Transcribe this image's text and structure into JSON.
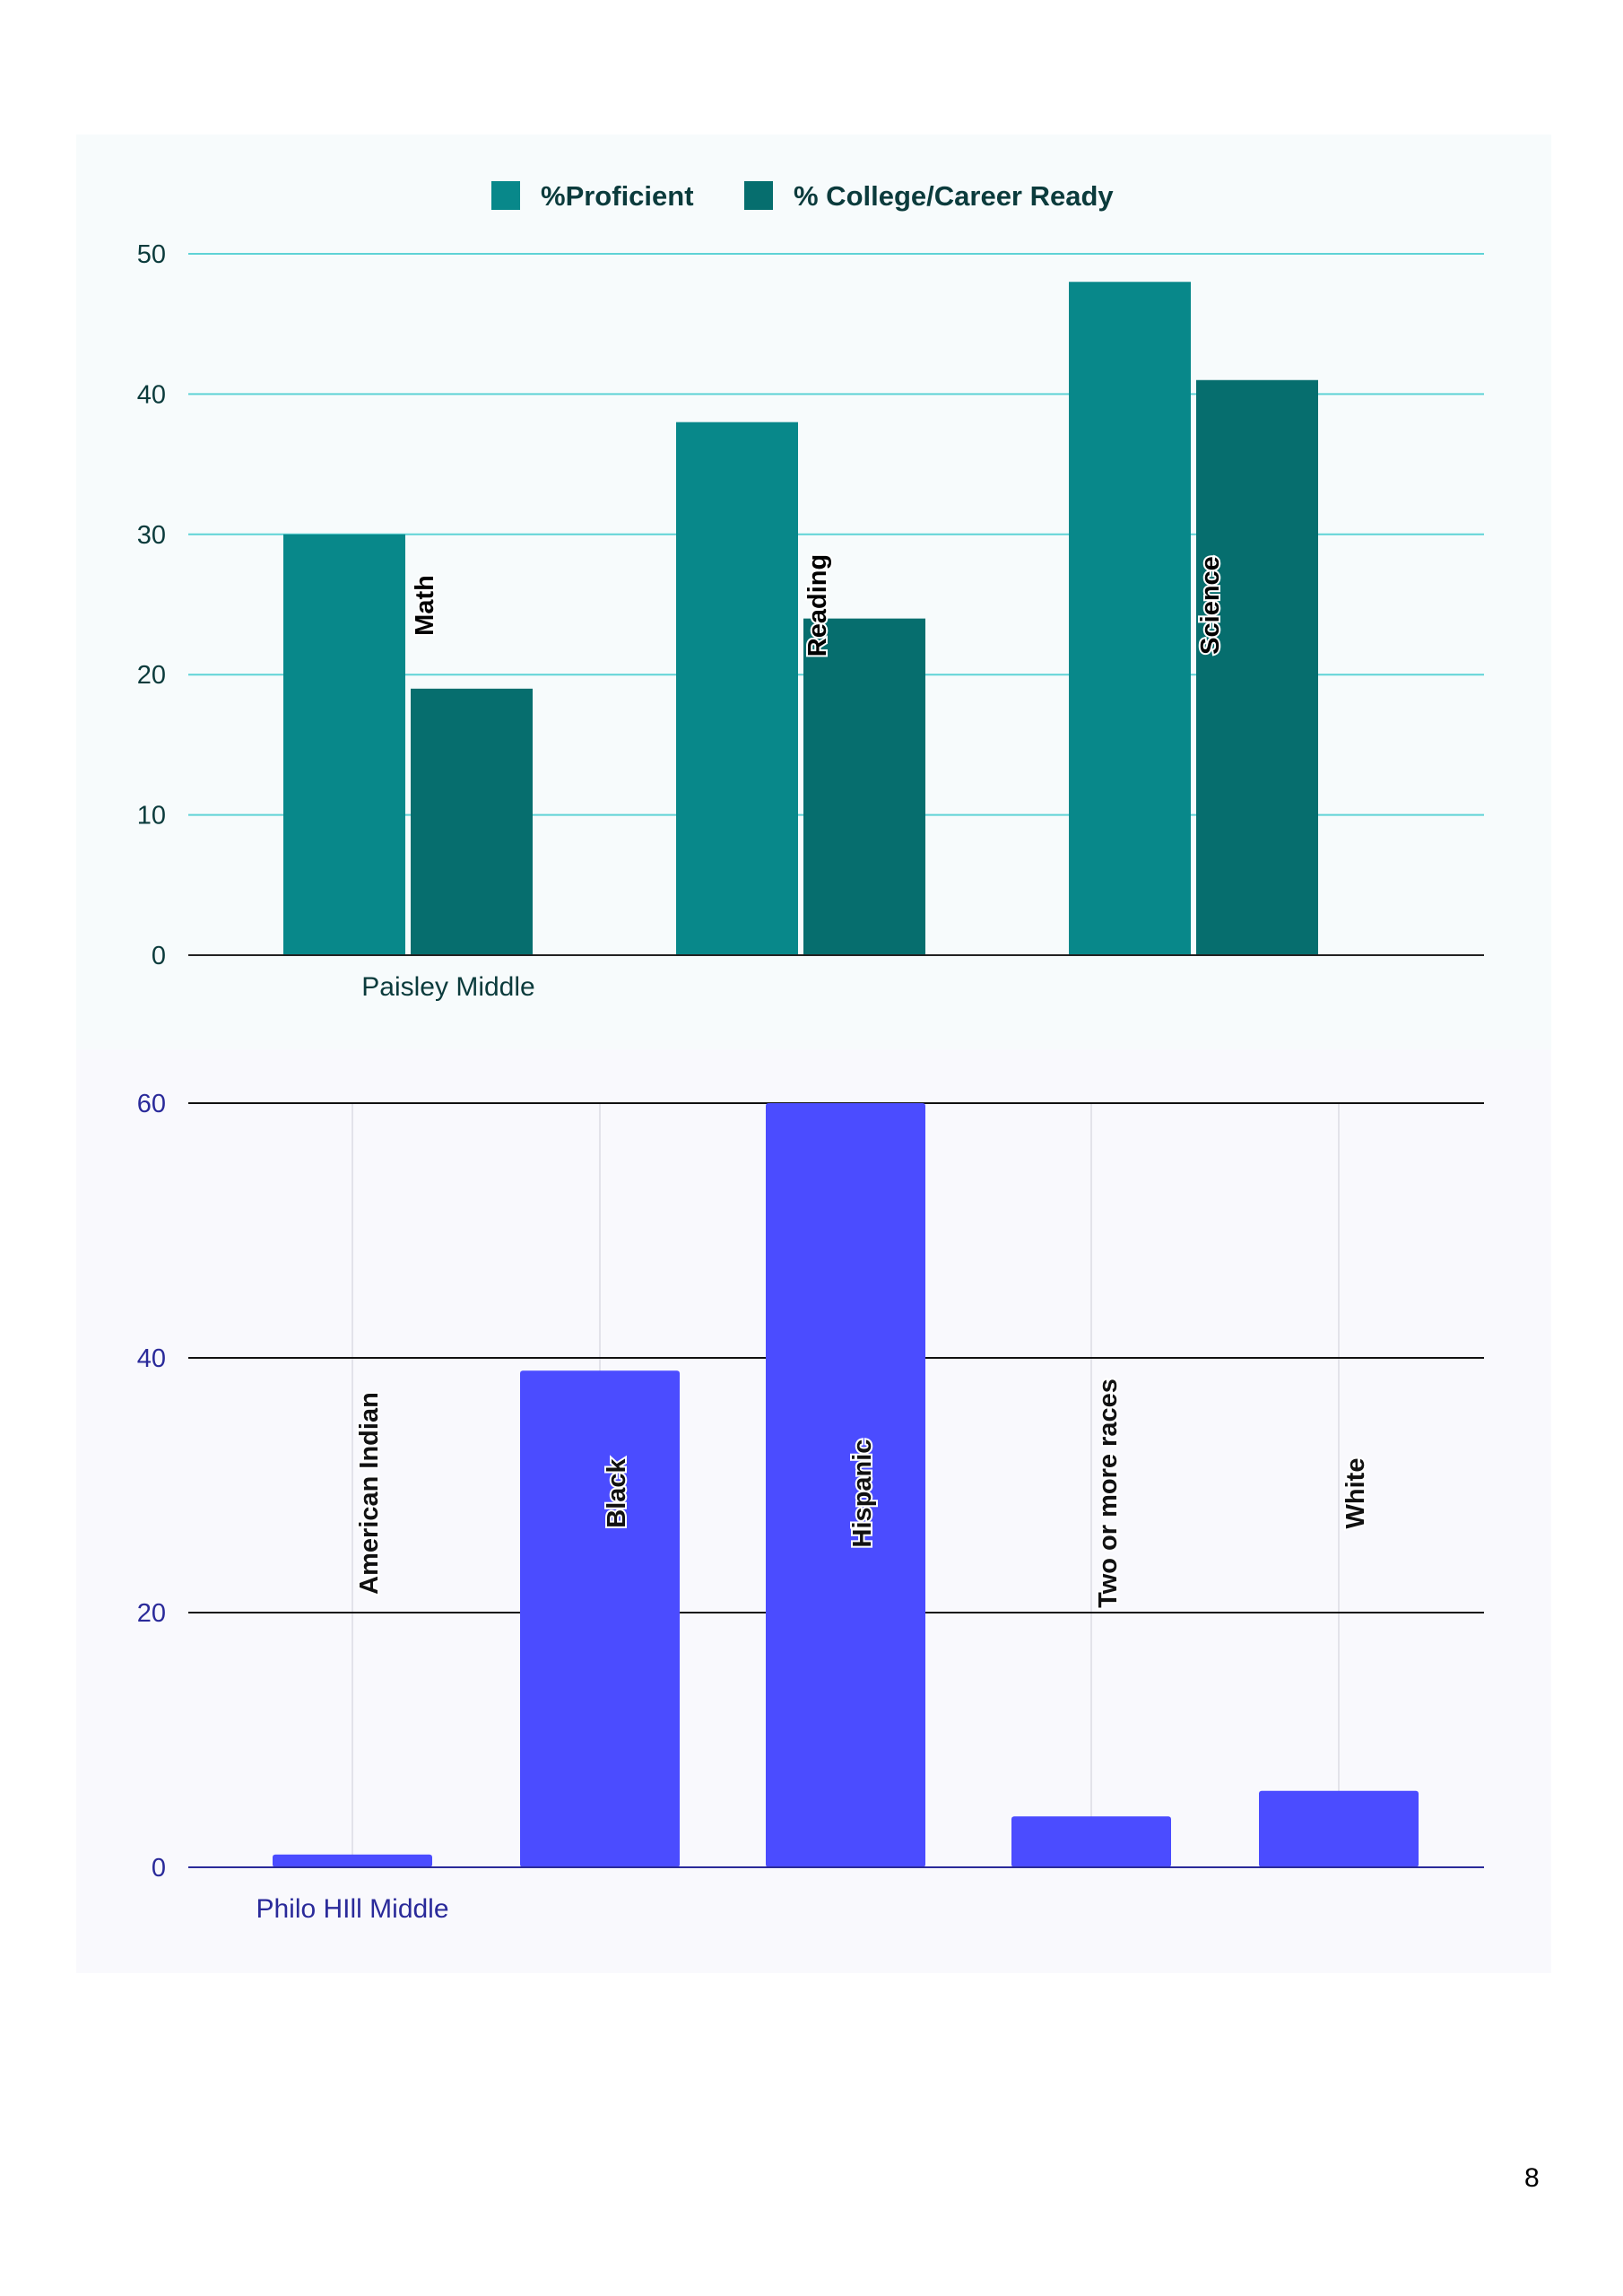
{
  "page": {
    "page_number": "8"
  },
  "colors": {
    "proficient": "#08888a",
    "ccr": "#066e6e",
    "chart1_grid": "#5fd3d6",
    "chart1_text": "#0b3b3c",
    "chart2_bar": "#4b4cff",
    "chart2_grid": "#111111",
    "chart2_text": "#2a2a9a"
  },
  "chart_data": [
    {
      "type": "bar",
      "xlabel": "Paisley Middle",
      "ylabel": "",
      "ylim": [
        0,
        50
      ],
      "yticks": [
        0,
        10,
        20,
        30,
        40,
        50
      ],
      "grid": true,
      "legend_position": "top-center",
      "categories": [
        "Math",
        "Reading",
        "Science"
      ],
      "series": [
        {
          "name": "%Proficient",
          "values": [
            30,
            38,
            48
          ]
        },
        {
          "name": "% College/Career Ready",
          "values": [
            19,
            24,
            41
          ]
        }
      ]
    },
    {
      "type": "bar",
      "xlabel": "Philo HIll Middle",
      "ylabel": "",
      "ylim": [
        0,
        60
      ],
      "yticks": [
        0,
        20,
        40,
        60
      ],
      "grid": true,
      "categories": [
        "American Indian",
        "Black",
        "Hispanic",
        "Two or more races",
        "White"
      ],
      "values": [
        1,
        39,
        60,
        4,
        6
      ]
    }
  ]
}
